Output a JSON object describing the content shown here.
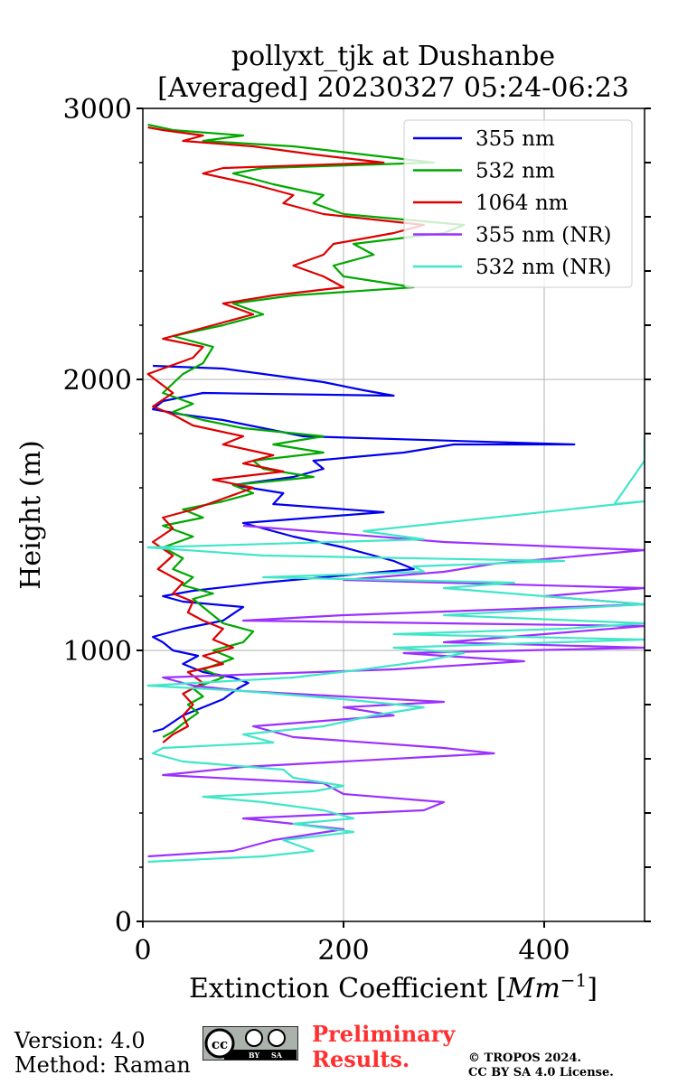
{
  "chart_data": {
    "type": "line",
    "title_line1": "pollyxt_tjk at Dushanbe",
    "title_line2": "[Averaged] 20230327 05:24-06:23",
    "xlabel_text": "Extinction Coefficient [",
    "xlabel_unit_base": "Mm",
    "xlabel_unit_exp": "−1",
    "xlabel_close": "]",
    "ylabel": "Height (m)",
    "xlim": [
      0,
      500
    ],
    "ylim": [
      0,
      3000
    ],
    "xticks": [
      0,
      200,
      400
    ],
    "yticks": [
      0,
      1000,
      2000,
      3000
    ],
    "x_tick_labels": [
      "0",
      "200",
      "400"
    ],
    "y_tick_labels": [
      "0",
      "1000",
      "2000",
      "3000"
    ],
    "grid": true,
    "legend_position": "top-right",
    "series": [
      {
        "name": "355 nm",
        "color": "#0000ee",
        "points": [
          [
            10,
            700
          ],
          [
            20,
            710
          ],
          [
            40,
            760
          ],
          [
            60,
            790
          ],
          [
            80,
            820
          ],
          [
            95,
            860
          ],
          [
            105,
            880
          ],
          [
            90,
            900
          ],
          [
            60,
            920
          ],
          [
            40,
            950
          ],
          [
            55,
            980
          ],
          [
            30,
            1000
          ],
          [
            20,
            1030
          ],
          [
            10,
            1050
          ],
          [
            40,
            1080
          ],
          [
            80,
            1110
          ],
          [
            100,
            1160
          ],
          [
            40,
            1180
          ],
          [
            20,
            1200
          ],
          [
            50,
            1220
          ],
          [
            120,
            1250
          ],
          [
            270,
            1300
          ],
          [
            250,
            1330
          ],
          [
            200,
            1380
          ],
          [
            150,
            1420
          ],
          [
            100,
            1470
          ],
          [
            240,
            1510
          ],
          [
            130,
            1540
          ],
          [
            140,
            1580
          ],
          [
            90,
            1610
          ],
          [
            150,
            1640
          ],
          [
            180,
            1670
          ],
          [
            170,
            1700
          ],
          [
            260,
            1730
          ],
          [
            310,
            1760
          ],
          [
            430,
            1760
          ],
          [
            160,
            1790
          ],
          [
            120,
            1820
          ],
          [
            80,
            1850
          ],
          [
            40,
            1870
          ],
          [
            10,
            1890
          ],
          [
            20,
            1920
          ],
          [
            60,
            1950
          ],
          [
            250,
            1940
          ],
          [
            220,
            1960
          ],
          [
            180,
            1990
          ],
          [
            120,
            2020
          ],
          [
            80,
            2040
          ],
          [
            10,
            2050
          ]
        ]
      },
      {
        "name": "532 nm",
        "color": "#00a800",
        "points": [
          [
            20,
            680
          ],
          [
            30,
            700
          ],
          [
            40,
            730
          ],
          [
            55,
            770
          ],
          [
            45,
            800
          ],
          [
            60,
            830
          ],
          [
            50,
            860
          ],
          [
            80,
            900
          ],
          [
            60,
            930
          ],
          [
            90,
            970
          ],
          [
            70,
            1000
          ],
          [
            100,
            1030
          ],
          [
            110,
            1070
          ],
          [
            80,
            1100
          ],
          [
            70,
            1130
          ],
          [
            60,
            1160
          ],
          [
            50,
            1190
          ],
          [
            70,
            1210
          ],
          [
            40,
            1240
          ],
          [
            50,
            1270
          ],
          [
            30,
            1300
          ],
          [
            40,
            1340
          ],
          [
            20,
            1380
          ],
          [
            50,
            1420
          ],
          [
            20,
            1460
          ],
          [
            60,
            1490
          ],
          [
            40,
            1520
          ],
          [
            80,
            1550
          ],
          [
            110,
            1580
          ],
          [
            90,
            1610
          ],
          [
            170,
            1640
          ],
          [
            120,
            1670
          ],
          [
            110,
            1700
          ],
          [
            180,
            1730
          ],
          [
            130,
            1760
          ],
          [
            180,
            1790
          ],
          [
            100,
            1820
          ],
          [
            60,
            1850
          ],
          [
            30,
            1880
          ],
          [
            50,
            1910
          ],
          [
            20,
            1950
          ],
          [
            40,
            2020
          ],
          [
            60,
            2060
          ],
          [
            70,
            2120
          ],
          [
            30,
            2160
          ],
          [
            80,
            2200
          ],
          [
            120,
            2240
          ],
          [
            90,
            2280
          ],
          [
            150,
            2310
          ],
          [
            270,
            2340
          ],
          [
            200,
            2380
          ],
          [
            190,
            2420
          ],
          [
            230,
            2460
          ],
          [
            210,
            2500
          ],
          [
            300,
            2540
          ],
          [
            320,
            2570
          ],
          [
            200,
            2610
          ],
          [
            170,
            2650
          ],
          [
            180,
            2680
          ],
          [
            130,
            2720
          ],
          [
            90,
            2760
          ],
          [
            120,
            2780
          ],
          [
            290,
            2800
          ],
          [
            220,
            2830
          ],
          [
            150,
            2860
          ],
          [
            60,
            2880
          ],
          [
            100,
            2900
          ],
          [
            30,
            2920
          ],
          [
            5,
            2940
          ]
        ]
      },
      {
        "name": "1064 nm",
        "color": "#dd0000",
        "points": [
          [
            20,
            660
          ],
          [
            30,
            690
          ],
          [
            45,
            720
          ],
          [
            40,
            760
          ],
          [
            50,
            800
          ],
          [
            40,
            840
          ],
          [
            60,
            880
          ],
          [
            45,
            920
          ],
          [
            80,
            950
          ],
          [
            60,
            980
          ],
          [
            90,
            1010
          ],
          [
            70,
            1040
          ],
          [
            80,
            1080
          ],
          [
            60,
            1110
          ],
          [
            45,
            1140
          ],
          [
            50,
            1180
          ],
          [
            30,
            1210
          ],
          [
            40,
            1250
          ],
          [
            15,
            1300
          ],
          [
            30,
            1350
          ],
          [
            10,
            1400
          ],
          [
            30,
            1450
          ],
          [
            20,
            1490
          ],
          [
            50,
            1520
          ],
          [
            80,
            1560
          ],
          [
            110,
            1600
          ],
          [
            70,
            1630
          ],
          [
            140,
            1660
          ],
          [
            100,
            1690
          ],
          [
            130,
            1720
          ],
          [
            80,
            1760
          ],
          [
            100,
            1790
          ],
          [
            50,
            1830
          ],
          [
            30,
            1870
          ],
          [
            10,
            1900
          ],
          [
            30,
            1950
          ],
          [
            5,
            2020
          ],
          [
            50,
            2080
          ],
          [
            60,
            2120
          ],
          [
            20,
            2150
          ],
          [
            70,
            2200
          ],
          [
            110,
            2240
          ],
          [
            80,
            2280
          ],
          [
            130,
            2310
          ],
          [
            200,
            2340
          ],
          [
            180,
            2380
          ],
          [
            150,
            2420
          ],
          [
            180,
            2460
          ],
          [
            190,
            2500
          ],
          [
            250,
            2540
          ],
          [
            280,
            2570
          ],
          [
            180,
            2610
          ],
          [
            140,
            2650
          ],
          [
            150,
            2680
          ],
          [
            110,
            2720
          ],
          [
            60,
            2760
          ],
          [
            80,
            2780
          ],
          [
            240,
            2800
          ],
          [
            170,
            2830
          ],
          [
            110,
            2860
          ],
          [
            40,
            2880
          ],
          [
            60,
            2900
          ],
          [
            20,
            2920
          ],
          [
            5,
            2930
          ]
        ]
      },
      {
        "name": "355 nm (NR)",
        "color": "#9b30ff",
        "points": [
          [
            5,
            240
          ],
          [
            90,
            260
          ],
          [
            130,
            300
          ],
          [
            200,
            340
          ],
          [
            100,
            380
          ],
          [
            280,
            410
          ],
          [
            300,
            440
          ],
          [
            200,
            470
          ],
          [
            180,
            510
          ],
          [
            20,
            540
          ],
          [
            100,
            570
          ],
          [
            200,
            590
          ],
          [
            350,
            620
          ],
          [
            300,
            640
          ],
          [
            150,
            680
          ],
          [
            110,
            720
          ],
          [
            250,
            760
          ],
          [
            200,
            790
          ],
          [
            300,
            810
          ],
          [
            100,
            850
          ],
          [
            50,
            870
          ],
          [
            20,
            900
          ],
          [
            250,
            930
          ],
          [
            380,
            960
          ],
          [
            260,
            990
          ],
          [
            500,
            1010
          ],
          [
            300,
            1030
          ],
          [
            400,
            1060
          ],
          [
            500,
            1090
          ],
          [
            100,
            1110
          ],
          [
            200,
            1130
          ],
          [
            500,
            1170
          ],
          [
            400,
            1200
          ],
          [
            500,
            1230
          ],
          [
            200,
            1260
          ],
          [
            300,
            1290
          ],
          [
            350,
            1320
          ],
          [
            500,
            1370
          ],
          [
            300,
            1400
          ],
          [
            200,
            1430
          ],
          [
            100,
            1460
          ]
        ]
      },
      {
        "name": "532 nm (NR)",
        "color": "#40e6c8",
        "points": [
          [
            5,
            220
          ],
          [
            120,
            240
          ],
          [
            170,
            260
          ],
          [
            140,
            300
          ],
          [
            210,
            330
          ],
          [
            150,
            360
          ],
          [
            210,
            380
          ],
          [
            180,
            410
          ],
          [
            120,
            440
          ],
          [
            60,
            460
          ],
          [
            170,
            480
          ],
          [
            200,
            500
          ],
          [
            150,
            530
          ],
          [
            140,
            560
          ],
          [
            40,
            590
          ],
          [
            10,
            620
          ],
          [
            20,
            640
          ],
          [
            130,
            660
          ],
          [
            100,
            690
          ],
          [
            180,
            720
          ],
          [
            230,
            760
          ],
          [
            280,
            790
          ],
          [
            200,
            820
          ],
          [
            100,
            850
          ],
          [
            5,
            870
          ],
          [
            150,
            900
          ],
          [
            220,
            930
          ],
          [
            280,
            960
          ],
          [
            320,
            990
          ],
          [
            250,
            1010
          ],
          [
            500,
            1040
          ],
          [
            250,
            1060
          ],
          [
            420,
            1080
          ],
          [
            500,
            1100
          ],
          [
            300,
            1130
          ],
          [
            500,
            1170
          ],
          [
            400,
            1200
          ],
          [
            300,
            1230
          ],
          [
            370,
            1250
          ],
          [
            120,
            1270
          ],
          [
            280,
            1290
          ],
          [
            270,
            1310
          ],
          [
            420,
            1330
          ],
          [
            120,
            1350
          ],
          [
            5,
            1380
          ],
          [
            280,
            1410
          ],
          [
            220,
            1440
          ],
          [
            500,
            1550
          ],
          [
            470,
            1540
          ],
          [
            500,
            1700
          ],
          [
            500,
            1790
          ]
        ]
      }
    ]
  },
  "footer": {
    "version": "Version: 4.0",
    "method": "Method: Raman",
    "cc_badge": "cc",
    "cc_by": "BY",
    "cc_sa": "SA",
    "preliminary_line1": "Preliminary",
    "preliminary_line2": "Results.",
    "copyright_line1": "© TROPOS 2024.",
    "copyright_line2": "CC BY SA 4.0 License.",
    "preliminary_color": "#ff3030"
  }
}
